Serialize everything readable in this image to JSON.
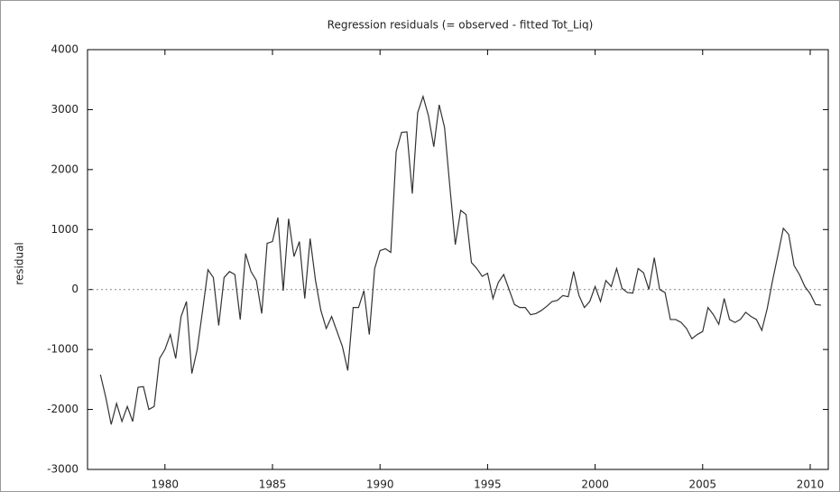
{
  "chart_data": {
    "type": "line",
    "title": "Regression residuals (= observed - fitted Tot_Liq)",
    "ylabel": "residual",
    "x": [
      1977,
      1977.25,
      1977.5,
      1977.75,
      1978,
      1978.25,
      1978.5,
      1978.75,
      1979,
      1979.25,
      1979.5,
      1979.75,
      1980,
      1980.25,
      1980.5,
      1980.75,
      1981,
      1981.25,
      1981.5,
      1981.75,
      1982,
      1982.25,
      1982.5,
      1982.75,
      1983,
      1983.25,
      1983.5,
      1983.75,
      1984,
      1984.25,
      1984.5,
      1984.75,
      1985,
      1985.25,
      1985.5,
      1985.75,
      1986,
      1986.25,
      1986.5,
      1986.75,
      1987,
      1987.25,
      1987.5,
      1987.75,
      1988,
      1988.25,
      1988.5,
      1988.75,
      1989,
      1989.25,
      1989.5,
      1989.75,
      1990,
      1990.25,
      1990.5,
      1990.75,
      1991,
      1991.25,
      1991.5,
      1991.75,
      1992,
      1992.25,
      1992.5,
      1992.75,
      1993,
      1993.25,
      1993.5,
      1993.75,
      1994,
      1994.25,
      1994.5,
      1994.75,
      1995,
      1995.25,
      1995.5,
      1995.75,
      1996,
      1996.25,
      1996.5,
      1996.75,
      1997,
      1997.25,
      1997.5,
      1997.75,
      1998,
      1998.25,
      1998.5,
      1998.75,
      1999,
      1999.25,
      1999.5,
      1999.75,
      2000,
      2000.25,
      2000.5,
      2000.75,
      2001,
      2001.25,
      2001.5,
      2001.75,
      2002,
      2002.25,
      2002.5,
      2002.75,
      2003,
      2003.25,
      2003.5,
      2003.75,
      2004,
      2004.25,
      2004.5,
      2004.75,
      2005,
      2005.25,
      2005.5,
      2005.75,
      2006,
      2006.25,
      2006.5,
      2006.75,
      2007,
      2007.25,
      2007.5,
      2007.75,
      2008,
      2008.25,
      2008.5,
      2008.75,
      2009,
      2009.25,
      2009.5,
      2009.75,
      2010,
      2010.25,
      2010.5
    ],
    "values": [
      -1420,
      -1800,
      -2250,
      -1900,
      -2200,
      -1950,
      -2200,
      -1630,
      -1620,
      -2000,
      -1950,
      -1150,
      -1000,
      -750,
      -1150,
      -450,
      -200,
      -1400,
      -1000,
      -350,
      330,
      200,
      -600,
      200,
      300,
      250,
      -500,
      600,
      300,
      150,
      -400,
      770,
      800,
      1200,
      -20,
      1180,
      550,
      800,
      -150,
      850,
      150,
      -350,
      -650,
      -450,
      -700,
      -950,
      -1350,
      -300,
      -300,
      -20,
      -750,
      350,
      650,
      680,
      620,
      2300,
      2620,
      2630,
      1600,
      2950,
      3220,
      2900,
      2380,
      3080,
      2700,
      1700,
      750,
      1320,
      1250,
      450,
      350,
      220,
      270,
      -150,
      120,
      250,
      0,
      -250,
      -300,
      -300,
      -420,
      -400,
      -350,
      -280,
      -200,
      -180,
      -100,
      -120,
      300,
      -100,
      -300,
      -200,
      50,
      -200,
      150,
      50,
      350,
      20,
      -50,
      -60,
      350,
      280,
      0,
      530,
      0,
      -50,
      -500,
      -500,
      -550,
      -650,
      -820,
      -750,
      -700,
      -300,
      -420,
      -580,
      -150,
      -500,
      -550,
      -500,
      -380,
      -450,
      -500,
      -680,
      -320,
      150,
      580,
      1020,
      920,
      400,
      250,
      50,
      -70,
      -250,
      -260
    ],
    "color": "#333333",
    "xlim": [
      1976.4,
      2010.84
    ],
    "xticks": [
      1980,
      1985,
      1990,
      1995,
      2000,
      2005,
      2010
    ],
    "ylim": [
      -3000,
      4000
    ],
    "yticks": [
      -3000,
      -2000,
      -1000,
      0,
      1000,
      2000,
      3000,
      4000
    ],
    "zero_line": true
  }
}
